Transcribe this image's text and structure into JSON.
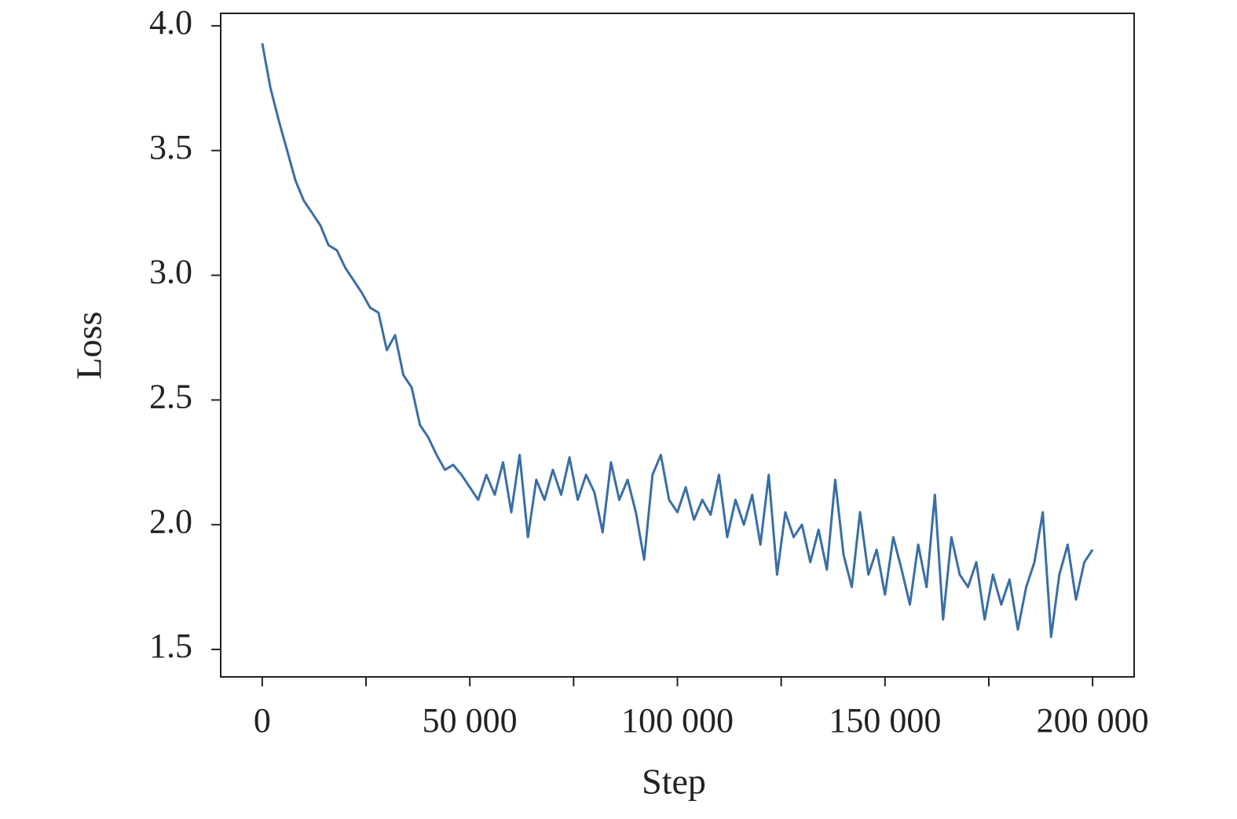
{
  "chart_data": {
    "type": "line",
    "xlabel": "Step",
    "ylabel": "Loss",
    "x": [
      0,
      2000,
      4000,
      6000,
      8000,
      10000,
      12000,
      14000,
      16000,
      18000,
      20000,
      22000,
      24000,
      26000,
      28000,
      30000,
      32000,
      34000,
      36000,
      38000,
      40000,
      42000,
      44000,
      46000,
      48000,
      50000,
      52000,
      54000,
      56000,
      58000,
      60000,
      62000,
      64000,
      66000,
      68000,
      70000,
      72000,
      74000,
      76000,
      78000,
      80000,
      82000,
      84000,
      86000,
      88000,
      90000,
      92000,
      94000,
      96000,
      98000,
      100000,
      102000,
      104000,
      106000,
      108000,
      110000,
      112000,
      114000,
      116000,
      118000,
      120000,
      122000,
      124000,
      126000,
      128000,
      130000,
      132000,
      134000,
      136000,
      138000,
      140000,
      142000,
      144000,
      146000,
      148000,
      150000,
      152000,
      154000,
      156000,
      158000,
      160000,
      162000,
      164000,
      166000,
      168000,
      170000,
      172000,
      174000,
      176000,
      178000,
      180000,
      182000,
      184000,
      186000,
      188000,
      190000,
      192000,
      194000,
      196000,
      198000,
      200000
    ],
    "series": [
      {
        "name": "Loss",
        "color": "#3a6ea5",
        "values": [
          3.93,
          3.75,
          3.62,
          3.5,
          3.38,
          3.3,
          3.25,
          3.2,
          3.12,
          3.1,
          3.03,
          2.98,
          2.93,
          2.87,
          2.85,
          2.7,
          2.76,
          2.6,
          2.55,
          2.4,
          2.35,
          2.28,
          2.22,
          2.24,
          2.2,
          2.15,
          2.1,
          2.2,
          2.12,
          2.25,
          2.05,
          2.28,
          1.95,
          2.18,
          2.1,
          2.22,
          2.12,
          2.27,
          2.1,
          2.2,
          2.13,
          1.97,
          2.25,
          2.1,
          2.18,
          2.05,
          1.86,
          2.2,
          2.28,
          2.1,
          2.05,
          2.15,
          2.02,
          2.1,
          2.04,
          2.2,
          1.95,
          2.1,
          2.0,
          2.12,
          1.92,
          2.2,
          1.8,
          2.05,
          1.95,
          2.0,
          1.85,
          1.98,
          1.82,
          2.18,
          1.88,
          1.75,
          2.05,
          1.8,
          1.9,
          1.72,
          1.95,
          1.82,
          1.68,
          1.92,
          1.75,
          2.12,
          1.62,
          1.95,
          1.8,
          1.75,
          1.85,
          1.62,
          1.8,
          1.68,
          1.78,
          1.58,
          1.75,
          1.85,
          2.05,
          1.55,
          1.8,
          1.92,
          1.7,
          1.85,
          1.9
        ]
      }
    ],
    "xlim": [
      -10000,
      210000
    ],
    "xticks": [
      0,
      {
        "value": 50000,
        "label": "50 000"
      },
      {
        "value": 100000,
        "label": "100 000"
      },
      {
        "value": 150000,
        "label": "150 000"
      },
      {
        "value": 200000,
        "label": "200 000"
      }
    ],
    "xminorticks": [
      25000,
      75000,
      125000,
      175000
    ],
    "ylim": [
      1.39,
      4.05
    ],
    "yticks": [
      1.5,
      {
        "value": 2,
        "label": "2.0"
      },
      2.5,
      {
        "value": 3,
        "label": "3.0"
      },
      3.5,
      {
        "value": 4,
        "label": "4.0"
      }
    ],
    "grid": false
  }
}
